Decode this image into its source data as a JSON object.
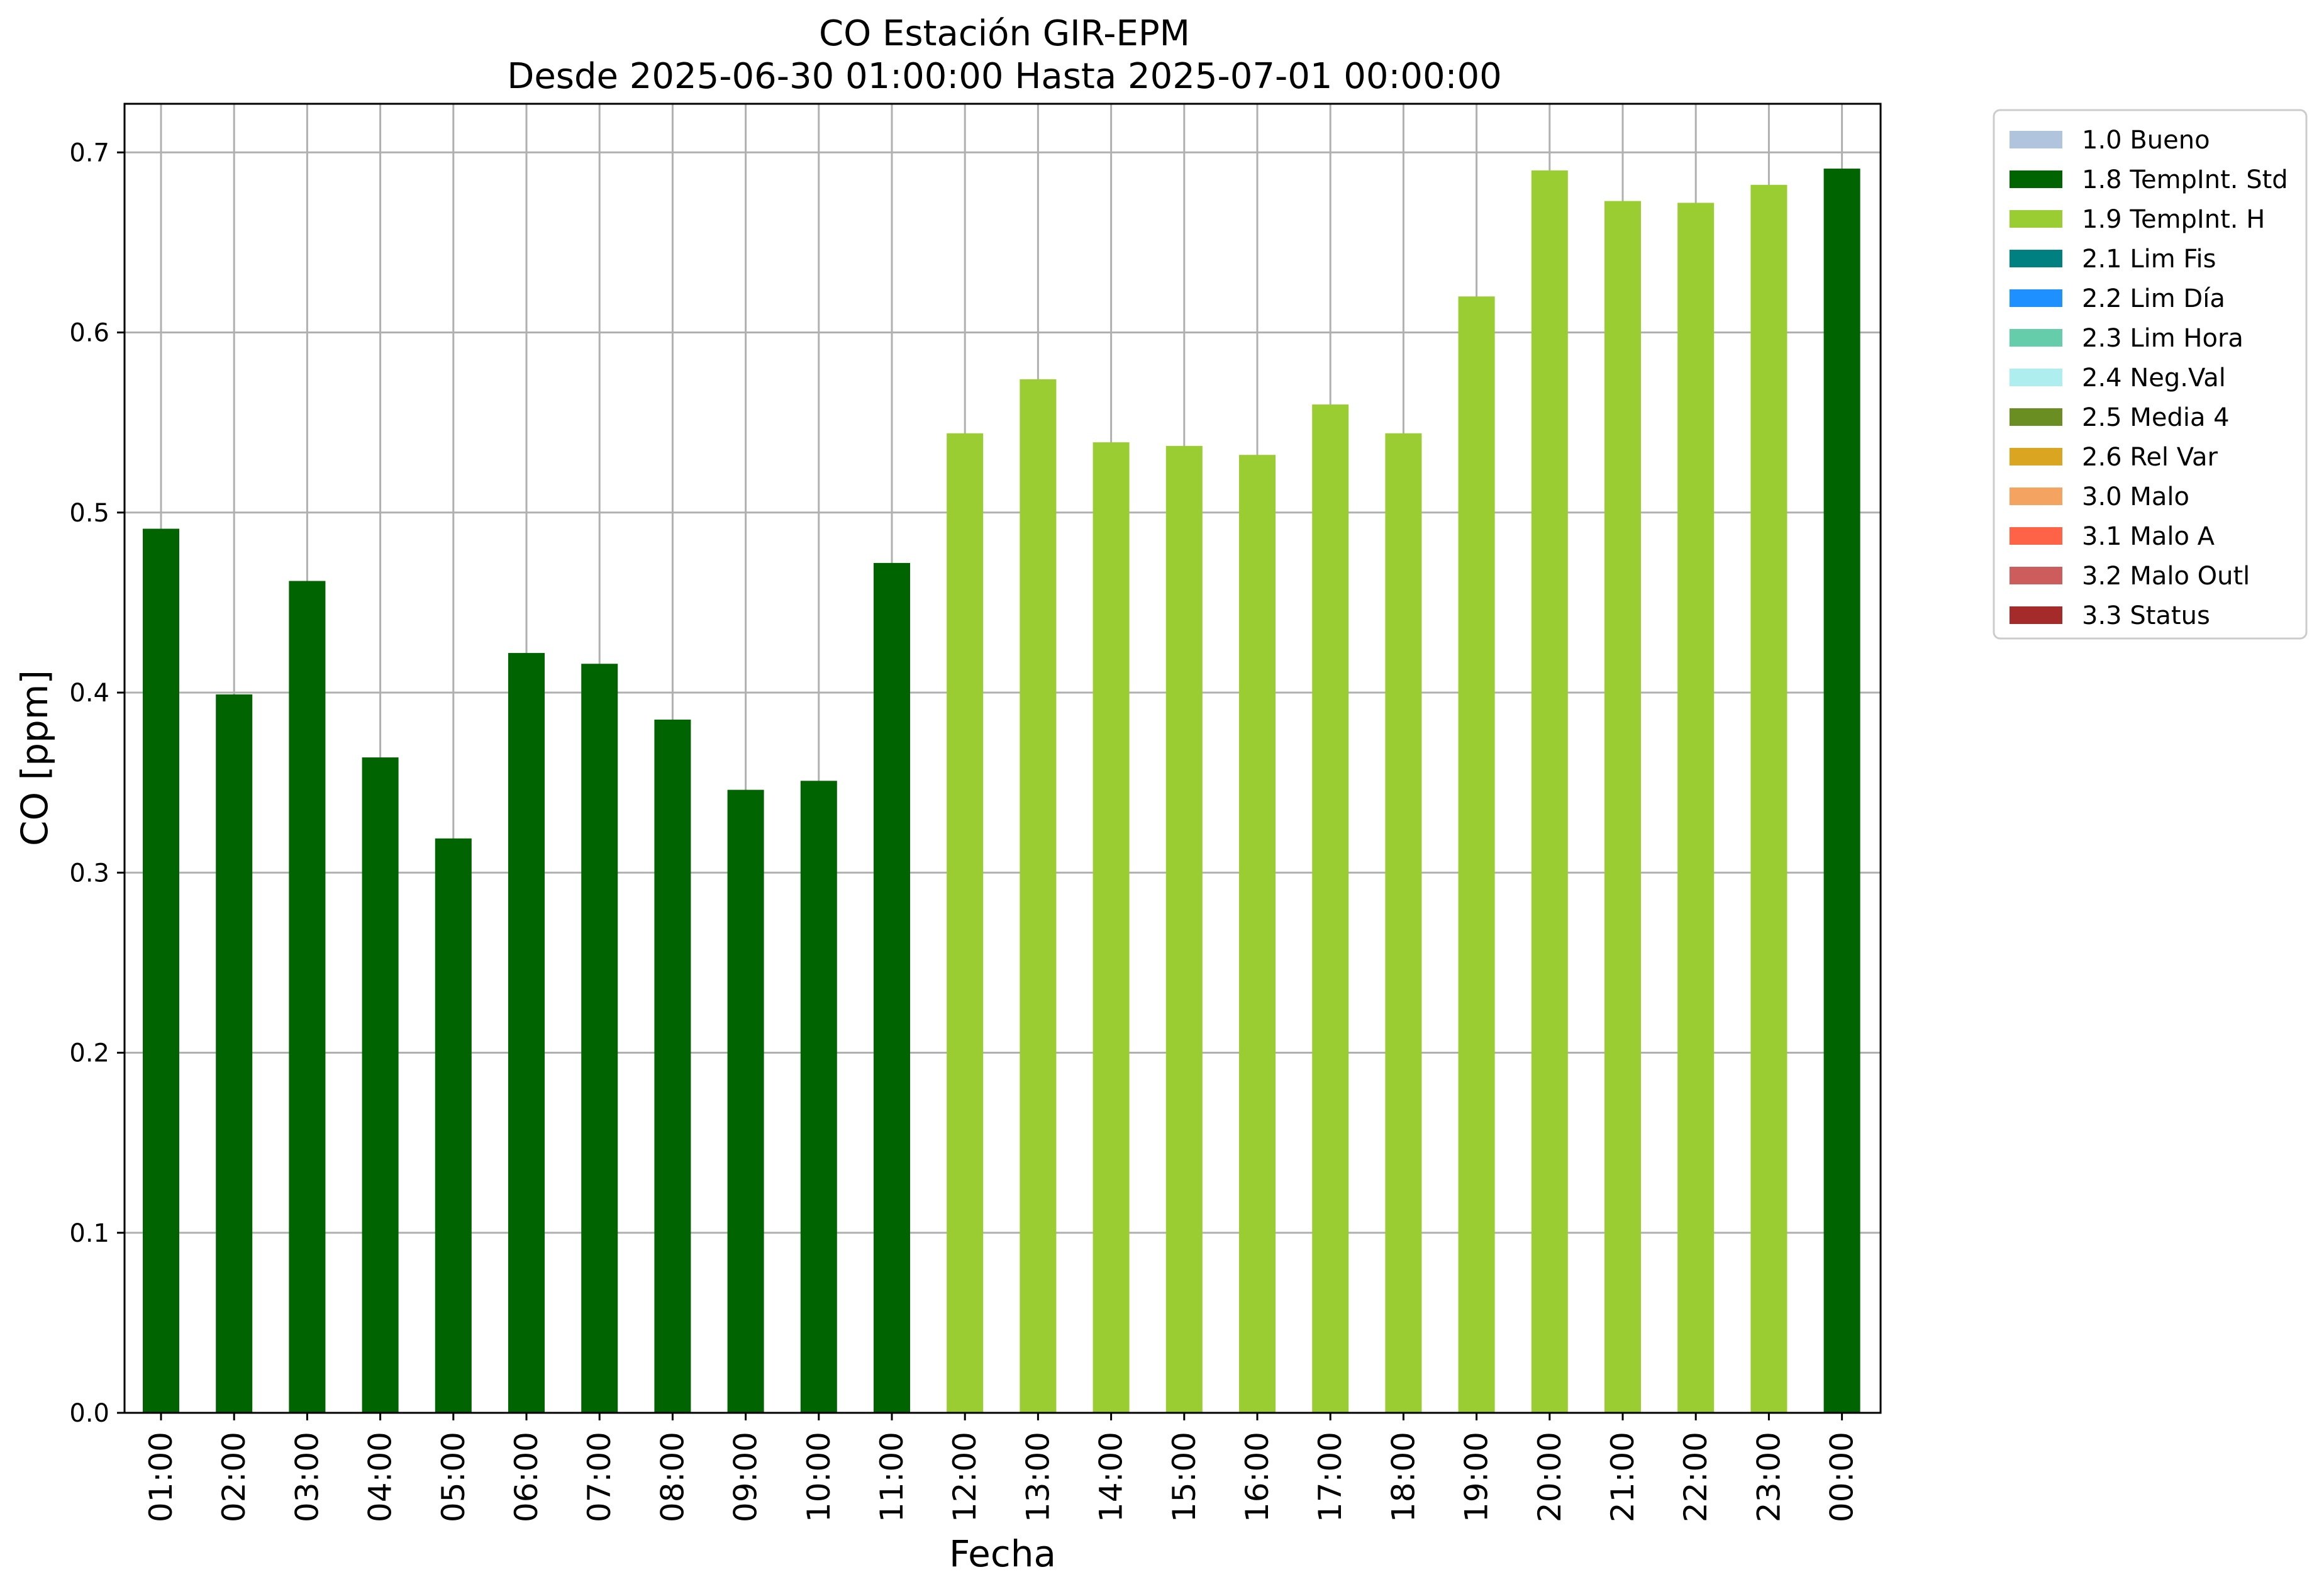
{
  "chart_data": {
    "type": "bar",
    "title": "CO Estación GIR-EPM",
    "subtitle": "Desde 2025-06-30 01:00:00 Hasta 2025-07-01 00:00:00",
    "xlabel": "Fecha",
    "ylabel": "CO [ppm]",
    "ylim": [
      0,
      0.727
    ],
    "yticks": [
      "0.0",
      "0.1",
      "0.2",
      "0.3",
      "0.4",
      "0.5",
      "0.6",
      "0.7"
    ],
    "grid": true,
    "legend_position": "outside-right-top",
    "categories": [
      "01:00",
      "02:00",
      "03:00",
      "04:00",
      "05:00",
      "06:00",
      "07:00",
      "08:00",
      "09:00",
      "10:00",
      "11:00",
      "12:00",
      "13:00",
      "14:00",
      "15:00",
      "16:00",
      "17:00",
      "18:00",
      "19:00",
      "20:00",
      "21:00",
      "22:00",
      "23:00",
      "00:00"
    ],
    "values": [
      0.491,
      0.399,
      0.462,
      0.364,
      0.319,
      0.422,
      0.416,
      0.385,
      0.346,
      0.351,
      0.472,
      0.544,
      0.574,
      0.539,
      0.537,
      0.532,
      0.56,
      0.544,
      0.62,
      0.69,
      0.673,
      0.672,
      0.682,
      0.691
    ],
    "flags": [
      "1.8 TempInt. Std",
      "1.8 TempInt. Std",
      "1.8 TempInt. Std",
      "1.8 TempInt. Std",
      "1.8 TempInt. Std",
      "1.8 TempInt. Std",
      "1.8 TempInt. Std",
      "1.8 TempInt. Std",
      "1.8 TempInt. Std",
      "1.8 TempInt. Std",
      "1.8 TempInt. Std",
      "1.9 TempInt. H",
      "1.9 TempInt. H",
      "1.9 TempInt. H",
      "1.9 TempInt. H",
      "1.9 TempInt. H",
      "1.9 TempInt. H",
      "1.9 TempInt. H",
      "1.9 TempInt. H",
      "1.9 TempInt. H",
      "1.9 TempInt. H",
      "1.9 TempInt. H",
      "1.9 TempInt. H",
      "1.8 TempInt. Std"
    ],
    "legend": [
      {
        "label": "1.0 Bueno",
        "color": "#b0c4de"
      },
      {
        "label": "1.8 TempInt. Std",
        "color": "#006400"
      },
      {
        "label": "1.9 TempInt. H",
        "color": "#9acd32"
      },
      {
        "label": "2.1 Lim Fis",
        "color": "#008080"
      },
      {
        "label": "2.2 Lim Día",
        "color": "#1e90ff"
      },
      {
        "label": "2.3 Lim Hora",
        "color": "#66cdaa"
      },
      {
        "label": "2.4 Neg.Val",
        "color": "#afeeee"
      },
      {
        "label": "2.5 Media 4",
        "color": "#6b8e23"
      },
      {
        "label": "2.6 Rel Var",
        "color": "#daa520"
      },
      {
        "label": "3.0 Malo",
        "color": "#f4a460"
      },
      {
        "label": "3.1 Malo A",
        "color": "#ff6347"
      },
      {
        "label": "3.2 Malo Outl",
        "color": "#cd5c5c"
      },
      {
        "label": "3.3 Status",
        "color": "#a52a2a"
      }
    ]
  }
}
